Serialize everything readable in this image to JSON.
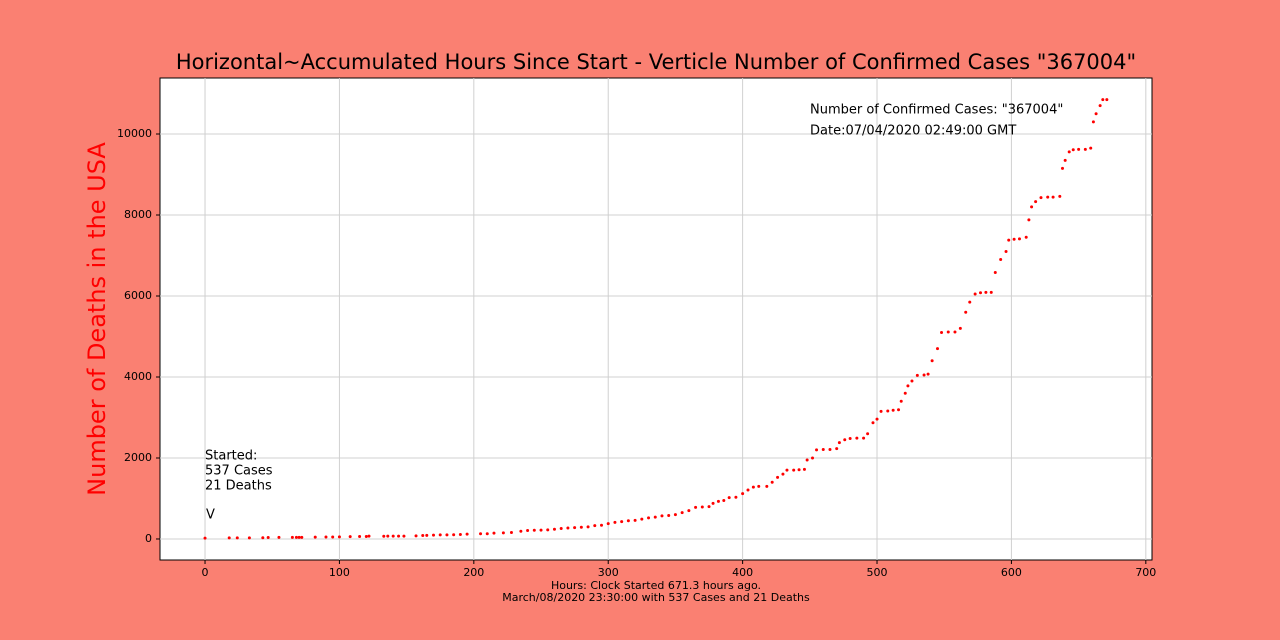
{
  "chart_data": {
    "type": "scatter",
    "title": "Horizontal~Accumulated Hours Since Start - Verticle Number of Confirmed Cases \"367004\"",
    "y_label": "Number of Deaths in the USA",
    "x_label": [
      "Hours: Clock Started 671.3 hours ago.",
      "March/08/2020 23:30:00 with 537 Cases and 21 Deaths"
    ],
    "annotations": [
      "Number of Confirmed Cases: \"367004\"",
      "Date:07/04/2020 02:49:00 GMT",
      "Started:",
      "537 Cases",
      "21 Deaths",
      "V"
    ],
    "color": "#ff0000",
    "grid": true,
    "xlim": [
      -33.5,
      704.6
    ],
    "ylim": [
      -519,
      11383
    ],
    "xticks": [
      0,
      100,
      200,
      300,
      400,
      500,
      600,
      700
    ],
    "yticks": [
      0,
      2000,
      4000,
      6000,
      8000,
      10000
    ],
    "x": [
      0,
      18,
      24,
      33,
      43,
      47,
      55,
      65,
      68,
      70,
      72,
      82,
      90,
      95,
      100,
      108,
      115,
      120,
      122,
      133,
      136,
      140,
      144,
      148,
      157,
      162,
      165,
      170,
      175,
      180,
      185,
      190,
      195,
      205,
      210,
      215,
      222,
      228,
      235,
      240,
      245,
      250,
      255,
      260,
      265,
      270,
      275,
      280,
      285,
      290,
      295,
      300,
      305,
      310,
      315,
      320,
      325,
      330,
      335,
      340,
      345,
      350,
      355,
      360,
      365,
      370,
      375,
      378,
      382,
      386,
      390,
      395,
      400,
      404,
      408,
      412,
      418,
      422,
      426,
      430,
      433,
      438,
      442,
      446,
      448,
      452,
      455,
      460,
      465,
      470,
      472,
      476,
      480,
      485,
      490,
      493,
      497,
      500,
      503,
      508,
      512,
      516,
      518,
      521,
      523,
      526,
      530,
      535,
      538,
      541,
      545,
      548,
      553,
      558,
      562,
      566,
      569,
      573,
      577,
      581,
      585,
      588,
      592,
      596,
      598,
      602,
      606,
      611,
      613,
      615,
      618,
      622,
      627,
      631,
      636,
      638,
      640,
      643,
      646,
      650,
      655,
      659,
      661,
      663,
      666,
      668,
      671
    ],
    "values": [
      21,
      26,
      26,
      28,
      30,
      36,
      40,
      41,
      41,
      41,
      41,
      45,
      48,
      49,
      51,
      57,
      62,
      62,
      70,
      68,
      70,
      70,
      70,
      70,
      78,
      85,
      90,
      95,
      100,
      100,
      105,
      110,
      120,
      130,
      130,
      145,
      150,
      160,
      190,
      210,
      215,
      220,
      225,
      240,
      260,
      270,
      280,
      290,
      300,
      330,
      340,
      380,
      410,
      430,
      450,
      460,
      490,
      520,
      540,
      570,
      580,
      600,
      650,
      700,
      780,
      790,
      800,
      880,
      930,
      950,
      1020,
      1030,
      1120,
      1210,
      1280,
      1300,
      1300,
      1400,
      1520,
      1600,
      1700,
      1700,
      1710,
      1720,
      1950,
      2000,
      2200,
      2210,
      2210,
      2230,
      2380,
      2450,
      2480,
      2490,
      2490,
      2600,
      2870,
      2960,
      3150,
      3160,
      3180,
      3190,
      3400,
      3600,
      3780,
      3900,
      4040,
      4050,
      4070,
      4400,
      4700,
      5100,
      5110,
      5110,
      5200,
      5600,
      5850,
      6050,
      6080,
      6090,
      6090,
      6580,
      6900,
      7100,
      7380,
      7400,
      7410,
      7450,
      7880,
      8200,
      8330,
      8430,
      8440,
      8440,
      8460,
      9150,
      9350,
      9560,
      9610,
      9620,
      9620,
      9650,
      10300,
      10500,
      10700,
      10850,
      10850
    ]
  }
}
